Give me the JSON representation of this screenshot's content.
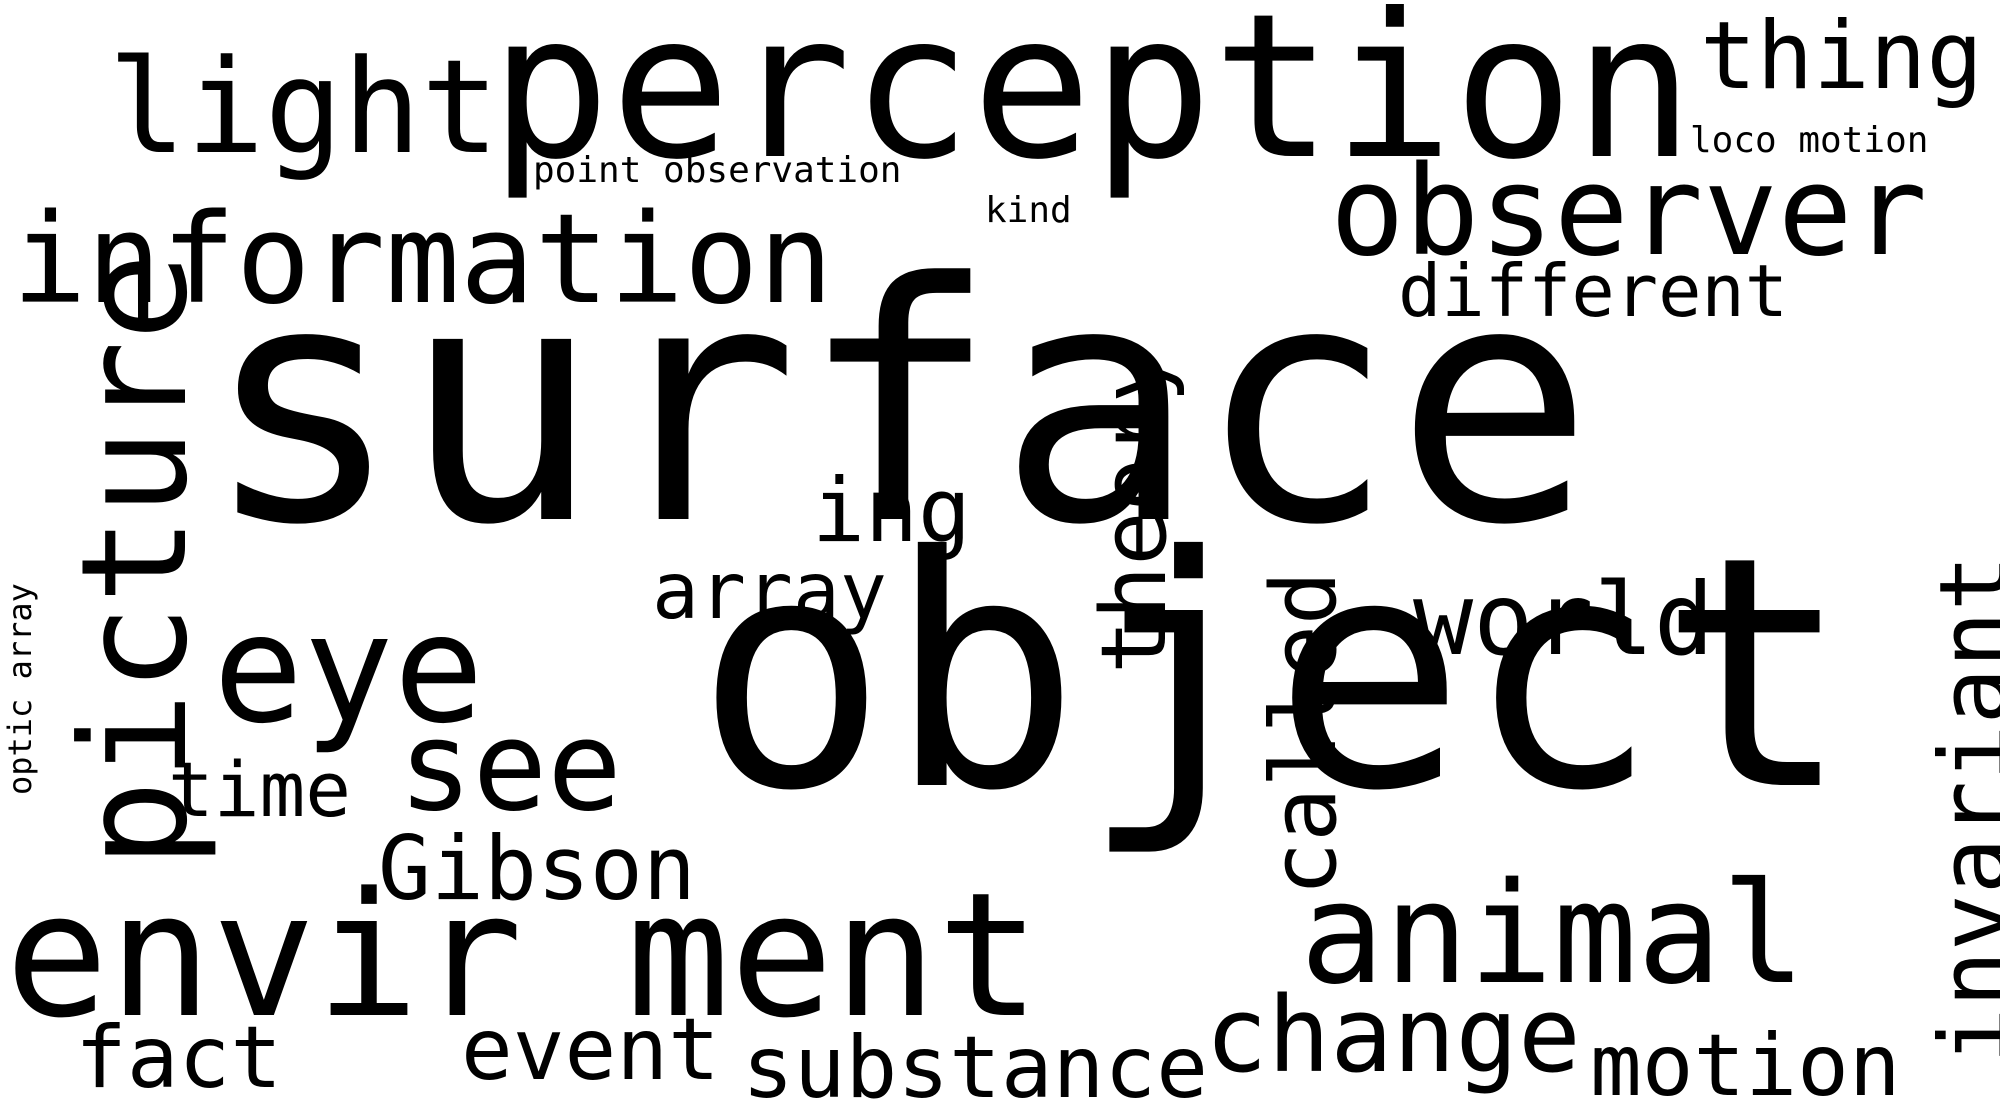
{
  "words": {
    "surface": "surface",
    "object": "object",
    "perception": "perception",
    "envir_ment": "envir ment",
    "information": "information",
    "observer": "observer",
    "animal": "animal",
    "light": "light",
    "picture": "picture",
    "eye": "eye",
    "thing": "thing",
    "see": "see",
    "world": "world",
    "invariant": "invariant",
    "change": "change",
    "theory": "theory",
    "called": "called",
    "substance": "substance",
    "motion": "motion",
    "event": "event",
    "fact": "fact",
    "different": "different",
    "array": "array",
    "ing": "ing",
    "time": "time",
    "gibson": "Gibson",
    "point_observation": "point observation",
    "loco_motion": "loco motion",
    "kind": "kind",
    "optic_array": "optic array"
  },
  "colors": {
    "background": "#ffffff",
    "text": "#000000"
  }
}
